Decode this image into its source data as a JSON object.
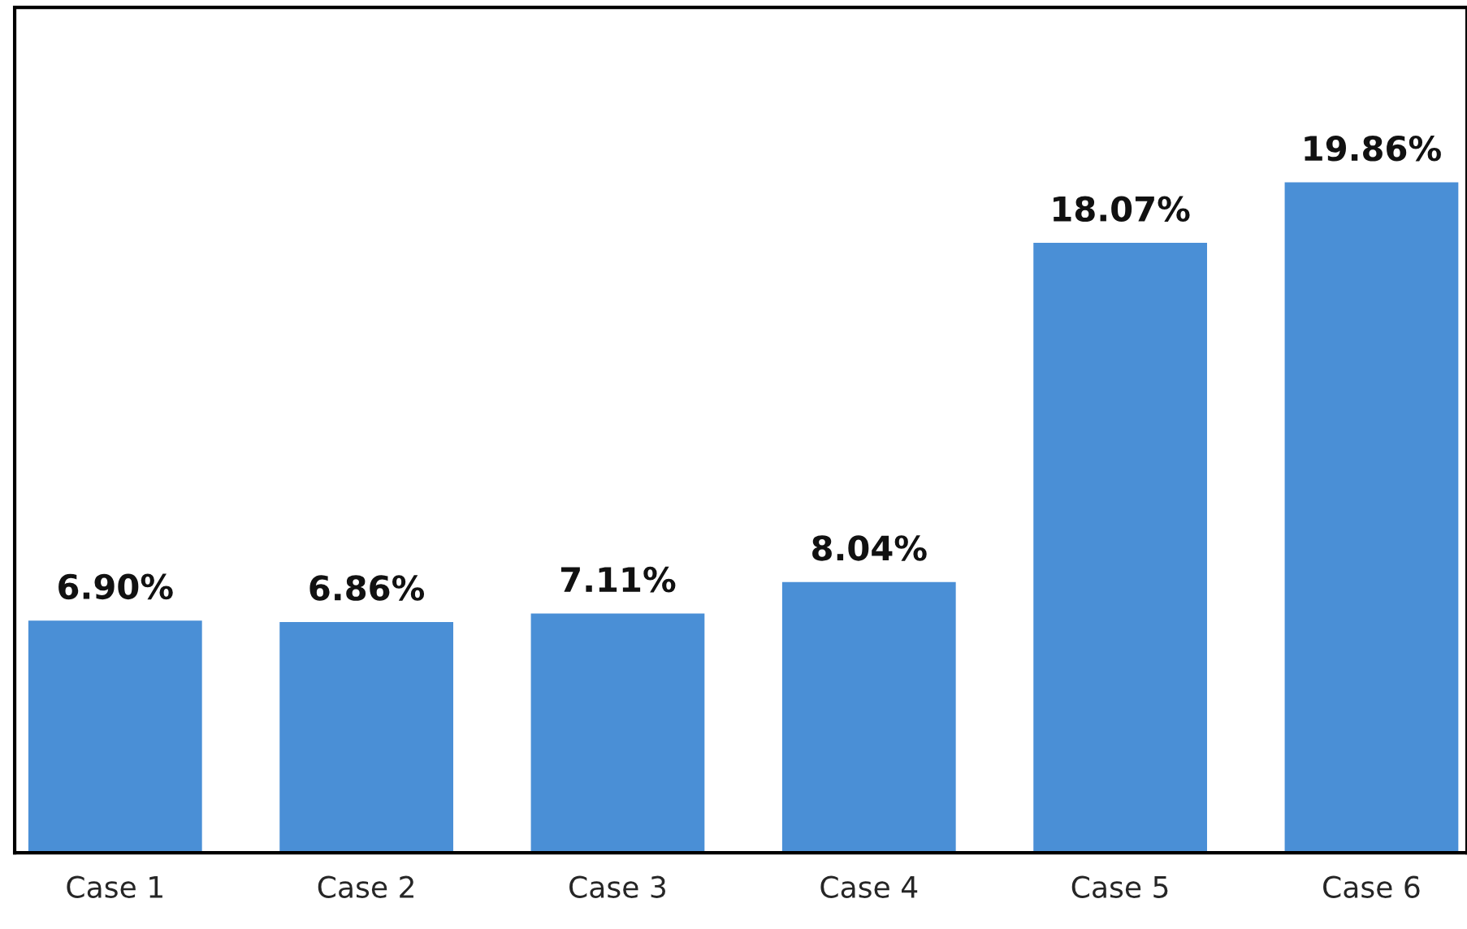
{
  "chart_data": {
    "type": "bar",
    "categories": [
      "Case 1",
      "Case 2",
      "Case 3",
      "Case 4",
      "Case 5",
      "Case 6"
    ],
    "values": [
      6.9,
      6.86,
      7.11,
      8.04,
      18.07,
      19.86
    ],
    "value_labels": [
      "6.90%",
      "6.86%",
      "7.11%",
      "8.04%",
      "18.07%",
      "19.86%"
    ],
    "color": "#4a8fd6",
    "ylim": [
      0,
      25
    ],
    "tick_labels": "x",
    "grid": false,
    "legend": false
  }
}
